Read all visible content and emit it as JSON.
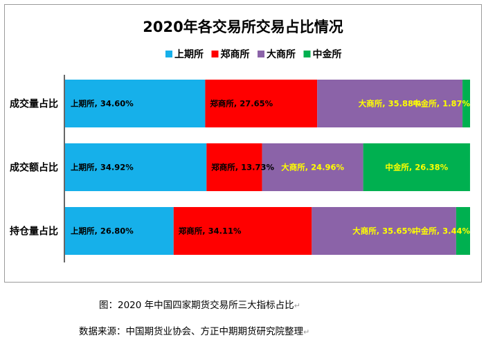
{
  "chart_data": {
    "type": "bar",
    "orientation": "horizontal-stacked-100",
    "title": "2020年各交易所交易占比情况",
    "categories": [
      "成交量占比",
      "成交额占比",
      "持仓量占比"
    ],
    "series": [
      {
        "name": "上期所",
        "color": "#16B0EA",
        "label_color": "#000000",
        "values": [
          34.6,
          34.92,
          26.8
        ],
        "labels": [
          "上期所, 34.60%",
          "上期所, 34.92%",
          "上期所, 26.80%"
        ]
      },
      {
        "name": "郑商所",
        "color": "#FF0000",
        "label_color": "#000000",
        "values": [
          27.65,
          13.73,
          34.11
        ],
        "labels": [
          "郑商所, 27.65%",
          "郑商所, 13.73%",
          "郑商所, 34.11%"
        ]
      },
      {
        "name": "大商所",
        "color": "#8B63A8",
        "label_color": "#FFFF00",
        "values": [
          35.88,
          24.96,
          35.65
        ],
        "labels": [
          "大商所, 35.88%",
          "大商所, 24.96%",
          "大商所, 35.65%"
        ]
      },
      {
        "name": "中金所",
        "color": "#00B050",
        "label_color": "#FFFF00",
        "values": [
          1.87,
          26.38,
          3.44
        ],
        "labels": [
          "中金所, 1.87%",
          "中金所, 26.38%",
          "中金所, 3.44%"
        ]
      }
    ],
    "xlim": [
      0,
      100
    ],
    "legend_position": "top",
    "grid": false
  },
  "captions": {
    "figure": "图：2020 年中国四家期货交易所三大指标占比",
    "source": "数据来源：中国期货业协会、方正中期期货研究院整理",
    "para_mark": "↵"
  }
}
